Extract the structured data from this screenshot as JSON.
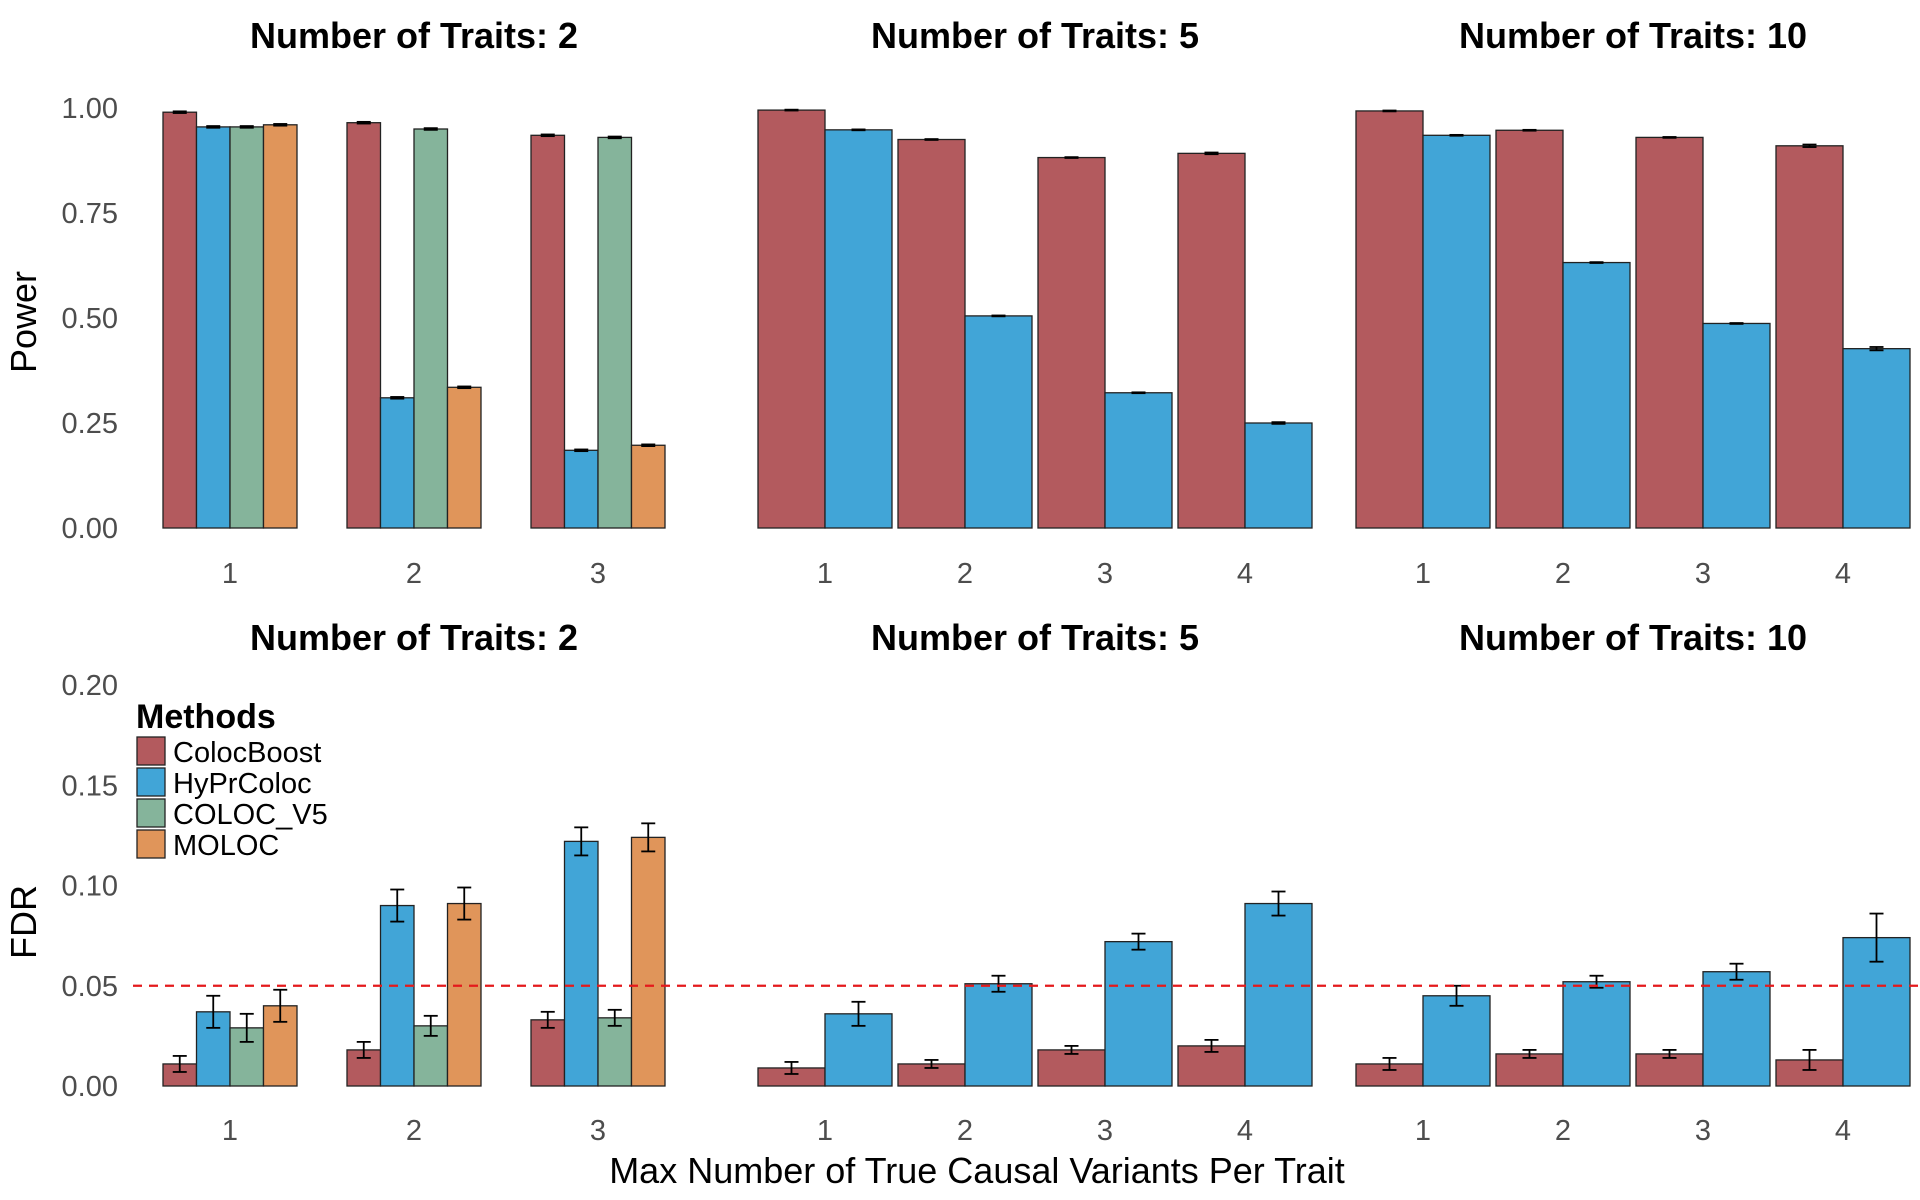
{
  "figure": {
    "xlabel": "Max Number of True Causal Variants Per Trait",
    "legend_title": "Methods",
    "methods": [
      "ColocBoost",
      "HyPrColoc",
      "COLOC_V5",
      "MOLOC"
    ],
    "colors": {
      "ColocBoost": "#b35a5e",
      "HyPrColoc": "#41a5d7",
      "COLOC_V5": "#85b49b",
      "MOLOC": "#e0955a",
      "reference_line": "#e41a1c"
    }
  },
  "chart_data": [
    {
      "type": "bar",
      "title": "Number of Traits: 2",
      "ylabel": "Power",
      "ylim": [
        0,
        1.0
      ],
      "yticks": [
        "0.00",
        "0.25",
        "0.50",
        "0.75",
        "1.00"
      ],
      "categories": [
        "1",
        "2",
        "3"
      ],
      "series": [
        {
          "name": "ColocBoost",
          "values": [
            0.99,
            0.965,
            0.935
          ],
          "err": [
            0.002,
            0.002,
            0.002
          ]
        },
        {
          "name": "HyPrColoc",
          "values": [
            0.955,
            0.31,
            0.185
          ],
          "err": [
            0.002,
            0.002,
            0.002
          ]
        },
        {
          "name": "COLOC_V5",
          "values": [
            0.955,
            0.95,
            0.93
          ],
          "err": [
            0.002,
            0.002,
            0.002
          ]
        },
        {
          "name": "MOLOC",
          "values": [
            0.96,
            0.335,
            0.197
          ],
          "err": [
            0.002,
            0.002,
            0.002
          ]
        }
      ]
    },
    {
      "type": "bar",
      "title": "Number of Traits: 5",
      "ylabel": "Power",
      "ylim": [
        0,
        1.0
      ],
      "categories": [
        "1",
        "2",
        "3",
        "4"
      ],
      "series": [
        {
          "name": "ColocBoost",
          "values": [
            0.995,
            0.925,
            0.882,
            0.892
          ],
          "err": [
            0.001,
            0.001,
            0.001,
            0.002
          ]
        },
        {
          "name": "HyPrColoc",
          "values": [
            0.948,
            0.505,
            0.322,
            0.25
          ],
          "err": [
            0.001,
            0.001,
            0.001,
            0.002
          ]
        }
      ]
    },
    {
      "type": "bar",
      "title": "Number of Traits: 10",
      "ylabel": "Power",
      "ylim": [
        0,
        1.0
      ],
      "categories": [
        "1",
        "2",
        "3",
        "4"
      ],
      "series": [
        {
          "name": "ColocBoost",
          "values": [
            0.993,
            0.947,
            0.93,
            0.91
          ],
          "err": [
            0.001,
            0.001,
            0.001,
            0.003
          ]
        },
        {
          "name": "HyPrColoc",
          "values": [
            0.935,
            0.632,
            0.487,
            0.427
          ],
          "err": [
            0.001,
            0.001,
            0.001,
            0.004
          ]
        }
      ]
    },
    {
      "type": "bar",
      "title": "Number of Traits: 2",
      "ylabel": "FDR",
      "ylim": [
        0,
        0.2
      ],
      "yticks": [
        "0.00",
        "0.05",
        "0.10",
        "0.15",
        "0.20"
      ],
      "reference_line": 0.05,
      "categories": [
        "1",
        "2",
        "3"
      ],
      "series": [
        {
          "name": "ColocBoost",
          "values": [
            0.011,
            0.018,
            0.033
          ],
          "err": [
            0.004,
            0.004,
            0.004
          ]
        },
        {
          "name": "HyPrColoc",
          "values": [
            0.037,
            0.09,
            0.122
          ],
          "err": [
            0.008,
            0.008,
            0.007
          ]
        },
        {
          "name": "COLOC_V5",
          "values": [
            0.029,
            0.03,
            0.034
          ],
          "err": [
            0.007,
            0.005,
            0.004
          ]
        },
        {
          "name": "MOLOC",
          "values": [
            0.04,
            0.091,
            0.124
          ],
          "err": [
            0.008,
            0.008,
            0.007
          ]
        }
      ]
    },
    {
      "type": "bar",
      "title": "Number of Traits: 5",
      "ylabel": "FDR",
      "ylim": [
        0,
        0.2
      ],
      "reference_line": 0.05,
      "categories": [
        "1",
        "2",
        "3",
        "4"
      ],
      "series": [
        {
          "name": "ColocBoost",
          "values": [
            0.009,
            0.011,
            0.018,
            0.02
          ],
          "err": [
            0.003,
            0.002,
            0.002,
            0.003
          ]
        },
        {
          "name": "HyPrColoc",
          "values": [
            0.036,
            0.051,
            0.072,
            0.091
          ],
          "err": [
            0.006,
            0.004,
            0.004,
            0.006
          ]
        }
      ]
    },
    {
      "type": "bar",
      "title": "Number of Traits: 10",
      "ylabel": "FDR",
      "ylim": [
        0,
        0.2
      ],
      "reference_line": 0.05,
      "categories": [
        "1",
        "2",
        "3",
        "4"
      ],
      "series": [
        {
          "name": "ColocBoost",
          "values": [
            0.011,
            0.016,
            0.016,
            0.013
          ],
          "err": [
            0.003,
            0.002,
            0.002,
            0.005
          ]
        },
        {
          "name": "HyPrColoc",
          "values": [
            0.045,
            0.052,
            0.057,
            0.074
          ],
          "err": [
            0.005,
            0.003,
            0.004,
            0.012
          ]
        }
      ]
    }
  ]
}
